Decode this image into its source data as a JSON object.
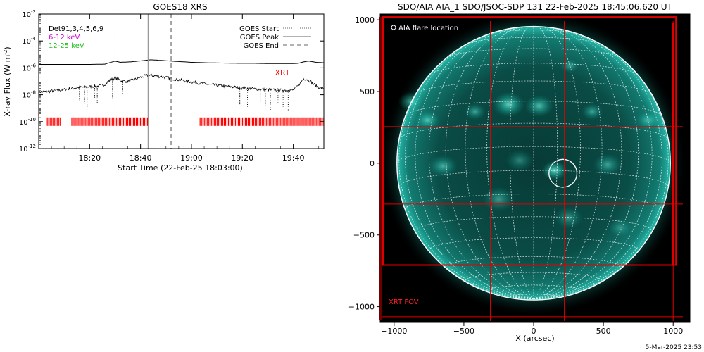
{
  "colors": {
    "goes_flux": "#000000",
    "xrt_marker": "#ff0000",
    "legend_6_12": "#d000d0",
    "legend_12_25": "#20c020",
    "sun_disk": "#0c9b90",
    "sun_background": "#000000",
    "grid": "#ffffff",
    "fov": "#e00000",
    "flare_circle": "#ffffff"
  },
  "chart_data": [
    {
      "type": "line",
      "title": "GOES18 XRS",
      "xlabel": "Start Time (22-Feb-25 18:03:00)",
      "ylabel": "X-ray Flux (W m",
      "ylabel_sup": "-2",
      "ylabel_close": ")",
      "log_scale_y": true,
      "ylim": [
        1e-12,
        0.01
      ],
      "xlim": [
        "18:03:00",
        "19:55:00"
      ],
      "y_ticks": [
        {
          "mant": "10",
          "exp": "-2",
          "value": 0.01
        },
        {
          "mant": "10",
          "exp": "-4",
          "value": 0.0001
        },
        {
          "mant": "10",
          "exp": "-6",
          "value": 1e-06
        },
        {
          "mant": "10",
          "exp": "-8",
          "value": 1e-08
        },
        {
          "mant": "10",
          "exp": "-10",
          "value": 1e-10
        },
        {
          "mant": "10",
          "exp": "-12",
          "value": 1e-12
        }
      ],
      "x_ticks": [
        "18:20",
        "18:40",
        "19:00",
        "19:20",
        "19:40"
      ],
      "x_tick_minutes": [
        20,
        40,
        60,
        80,
        100
      ],
      "legend_left": [
        {
          "text": "Det91,3,4,5,6,9",
          "color": "#000000"
        },
        {
          "text": "6-12 keV",
          "color": "#d000d0"
        },
        {
          "text": "12-25 keV",
          "color": "#20c020"
        }
      ],
      "legend_right": [
        {
          "text": "GOES Start",
          "style": "dotted"
        },
        {
          "text": "GOES Peak",
          "style": "solid"
        },
        {
          "text": "GOES End",
          "style": "dashed"
        }
      ],
      "annotation": "XRT",
      "vlines_minutes": {
        "start": 30,
        "peak": 43,
        "end": 52
      },
      "series": [
        {
          "id": "long",
          "x_minutes": [
            0,
            10,
            20,
            26,
            28,
            30,
            32,
            36,
            40,
            44,
            48,
            52,
            56,
            60,
            66,
            72,
            78,
            84,
            90,
            96,
            100,
            102,
            104,
            106,
            109,
            112
          ],
          "y": [
            1.8e-06,
            1.8e-06,
            1.8e-06,
            1.9e-06,
            2.5e-06,
            3.2e-06,
            2.6e-06,
            2.8e-06,
            3.3e-06,
            4e-06,
            3.6e-06,
            3.2e-06,
            2.9e-06,
            2.6e-06,
            2.4e-06,
            2.3e-06,
            2.2e-06,
            2.2e-06,
            2.1e-06,
            2.1e-06,
            2.1e-06,
            2.2e-06,
            2.8e-06,
            3.2e-06,
            2.6e-06,
            2.4e-06
          ]
        },
        {
          "id": "short",
          "x_minutes": [
            0,
            4,
            8,
            12,
            16,
            20,
            24,
            26,
            28,
            30,
            32,
            34,
            36,
            38,
            40,
            42,
            44,
            46,
            48,
            50,
            52,
            56,
            60,
            64,
            68,
            72,
            76,
            80,
            84,
            88,
            92,
            96,
            100,
            102,
            104,
            106,
            108,
            110,
            112
          ],
          "y": [
            1.6e-08,
            1.8e-08,
            2.2e-08,
            2.8e-08,
            3.5e-08,
            4e-08,
            4.5e-08,
            6e-08,
            1.2e-07,
            1.8e-07,
            1.2e-07,
            1e-07,
            1.1e-07,
            1.4e-07,
            2e-07,
            2.6e-07,
            2.8e-07,
            2.5e-07,
            2.2e-07,
            1.9e-07,
            1.6e-07,
            1.2e-07,
            9e-08,
            7e-08,
            5.5e-08,
            4.5e-08,
            3.8e-08,
            3.2e-08,
            2.8e-08,
            2.5e-08,
            2.3e-08,
            2.2e-08,
            2.2e-08,
            5e-08,
            1.6e-07,
            1.3e-07,
            6e-08,
            3.5e-08,
            3e-08
          ]
        }
      ],
      "dips_minutes": [
        16,
        18,
        19,
        22,
        23,
        29,
        33,
        79,
        82,
        87,
        89,
        91,
        94,
        96,
        98
      ],
      "xrt_level": 1e-10,
      "xrt_intervals_minutes": [
        [
          3,
          9
        ],
        [
          13,
          43
        ],
        [
          63,
          112
        ]
      ]
    },
    {
      "type": "heatmap",
      "title": "SDO/AIA AIA_1 SDO/JSOC-SDP 131 22-Feb-2025 18:45:06.620 UT",
      "xlabel": "X (arcsec)",
      "ylabel": "",
      "xlim": [
        -1100,
        1120
      ],
      "ylim": [
        -1110,
        1040
      ],
      "x_ticks": [
        -1000,
        -500,
        0,
        500,
        1000
      ],
      "y_ticks": [
        1000,
        500,
        0,
        -500,
        -1000
      ],
      "x_tick_labels": [
        "−1000",
        "−500",
        "0",
        "500",
        "1000"
      ],
      "y_tick_labels": [
        "1000",
        "500",
        "0",
        "−500",
        "−1000"
      ],
      "solar_radius_arcsec": 980,
      "legend": "AIA flare location",
      "flare_location": {
        "x": 210,
        "y": -70,
        "r": 100
      },
      "fov_label": "XRT FOV",
      "fov_box": {
        "x0": -1080,
        "x1": 1020,
        "y0": -710,
        "y1": 1020
      },
      "fov_grid_x": [
        -310,
        220,
        1000
      ],
      "fov_grid_y": [
        255,
        -285,
        -1070
      ],
      "active_regions": [
        {
          "x": -180,
          "y": 410,
          "r": 90,
          "i": 0.8
        },
        {
          "x": 40,
          "y": 400,
          "r": 80,
          "i": 0.7
        },
        {
          "x": 260,
          "y": 680,
          "r": 50,
          "i": 0.5
        },
        {
          "x": 420,
          "y": 360,
          "r": 60,
          "i": 0.55
        },
        {
          "x": -420,
          "y": 360,
          "r": 60,
          "i": 0.55
        },
        {
          "x": -760,
          "y": 300,
          "r": 70,
          "i": 0.7
        },
        {
          "x": -880,
          "y": 430,
          "r": 70,
          "i": 0.6
        },
        {
          "x": -650,
          "y": -20,
          "r": 80,
          "i": 0.6
        },
        {
          "x": 530,
          "y": -10,
          "r": 80,
          "i": 0.55
        },
        {
          "x": 820,
          "y": 300,
          "r": 70,
          "i": 0.6
        },
        {
          "x": -250,
          "y": -250,
          "r": 90,
          "i": 0.5
        },
        {
          "x": 250,
          "y": -380,
          "r": 80,
          "i": 0.45
        },
        {
          "x": 150,
          "y": -50,
          "r": 70,
          "i": 0.9
        },
        {
          "x": -100,
          "y": 20,
          "r": 80,
          "i": 0.4
        },
        {
          "x": 620,
          "y": -450,
          "r": 70,
          "i": 0.4
        }
      ]
    }
  ],
  "footer": {
    "timestamp": "5-Mar-2025 23:53"
  }
}
